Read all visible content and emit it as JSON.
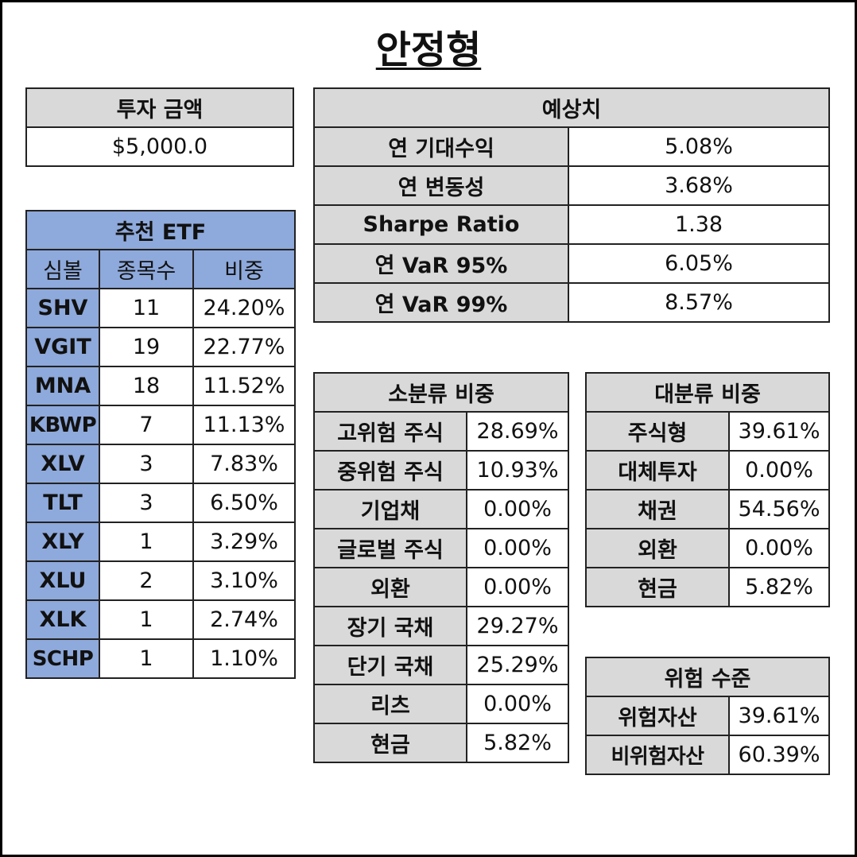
{
  "title": "안정형",
  "investment": {
    "header": "투자 금액",
    "amount": "$5,000.0"
  },
  "forecast": {
    "header": "예상치",
    "rows": [
      {
        "label": "연 기대수익",
        "value": "5.08%"
      },
      {
        "label": "연 변동성",
        "value": "3.68%"
      },
      {
        "label": "Sharpe Ratio",
        "value": "1.38"
      },
      {
        "label": "연 VaR 95%",
        "value": "6.05%"
      },
      {
        "label": "연 VaR 99%",
        "value": "8.57%"
      }
    ]
  },
  "etf": {
    "header": "추천 ETF",
    "columns": [
      "심볼",
      "종목수",
      "비중"
    ],
    "rows": [
      {
        "symbol": "SHV",
        "count": "11",
        "weight": "24.20%"
      },
      {
        "symbol": "VGIT",
        "count": "19",
        "weight": "22.77%"
      },
      {
        "symbol": "MNA",
        "count": "18",
        "weight": "11.52%"
      },
      {
        "symbol": "KBWP",
        "count": "7",
        "weight": "11.13%"
      },
      {
        "symbol": "XLV",
        "count": "3",
        "weight": "7.83%"
      },
      {
        "symbol": "TLT",
        "count": "3",
        "weight": "6.50%"
      },
      {
        "symbol": "XLY",
        "count": "1",
        "weight": "3.29%"
      },
      {
        "symbol": "XLU",
        "count": "2",
        "weight": "3.10%"
      },
      {
        "symbol": "XLK",
        "count": "1",
        "weight": "2.74%"
      },
      {
        "symbol": "SCHP",
        "count": "1",
        "weight": "1.10%"
      }
    ]
  },
  "sub_category": {
    "header": "소분류 비중",
    "rows": [
      {
        "label": "고위험 주식",
        "value": "28.69%"
      },
      {
        "label": "중위험 주식",
        "value": "10.93%"
      },
      {
        "label": "기업채",
        "value": "0.00%"
      },
      {
        "label": "글로벌 주식",
        "value": "0.00%"
      },
      {
        "label": "외환",
        "value": "0.00%"
      },
      {
        "label": "장기 국채",
        "value": "29.27%"
      },
      {
        "label": "단기 국채",
        "value": "25.29%"
      },
      {
        "label": "리츠",
        "value": "0.00%"
      },
      {
        "label": "현금",
        "value": "5.82%"
      }
    ]
  },
  "major_category": {
    "header": "대분류 비중",
    "rows": [
      {
        "label": "주식형",
        "value": "39.61%"
      },
      {
        "label": "대체투자",
        "value": "0.00%"
      },
      {
        "label": "채권",
        "value": "54.56%"
      },
      {
        "label": "외환",
        "value": "0.00%"
      },
      {
        "label": "현금",
        "value": "5.82%"
      }
    ]
  },
  "risk_level": {
    "header": "위험 수준",
    "rows": [
      {
        "label": "위험자산",
        "value": "39.61%"
      },
      {
        "label": "비위험자산",
        "value": "60.39%"
      }
    ]
  }
}
